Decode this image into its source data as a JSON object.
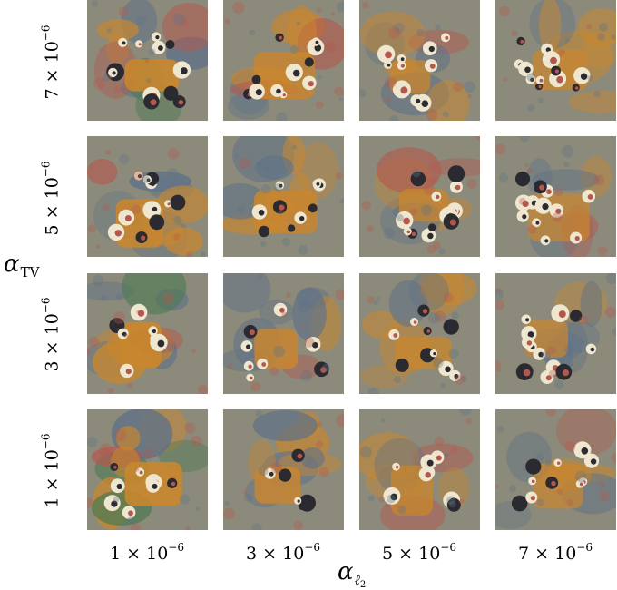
{
  "y_axis": {
    "title": "α",
    "title_subscript": "TV",
    "ticks": [
      {
        "base": "7 × 10",
        "exp": "−6"
      },
      {
        "base": "5 × 10",
        "exp": "−6"
      },
      {
        "base": "3 × 10",
        "exp": "−6"
      },
      {
        "base": "1 × 10",
        "exp": "−6"
      }
    ]
  },
  "x_axis": {
    "title": "α",
    "title_subscript_letter": "ℓ",
    "title_subscript_index": "2",
    "ticks": [
      {
        "base": "1 × 10",
        "exp": "−6"
      },
      {
        "base": "3 × 10",
        "exp": "−6"
      },
      {
        "base": "5 × 10",
        "exp": "−6"
      },
      {
        "base": "7 × 10",
        "exp": "−6"
      }
    ]
  },
  "palette": {
    "background_gray": "#8c8a7a",
    "orange": "#c9862e",
    "blue_gray": "#5f7287",
    "red": "#b4584e",
    "cream": "#efe6cf",
    "dark": "#2a2a30",
    "green": "#4d7a52"
  }
}
